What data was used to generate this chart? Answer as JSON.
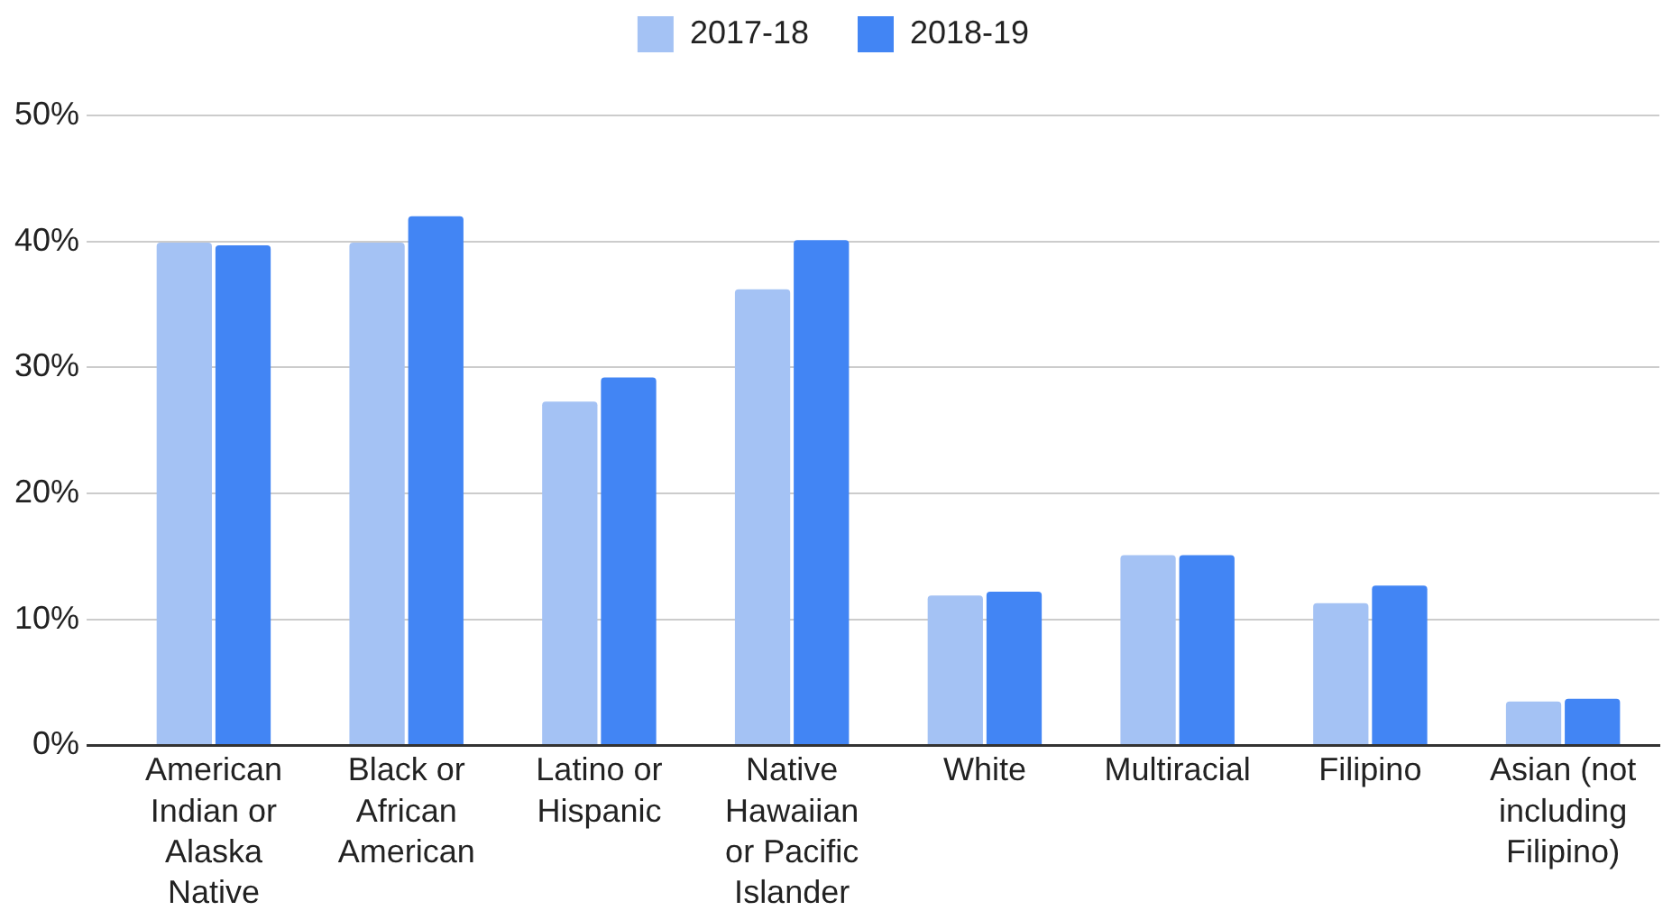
{
  "chart_data": {
    "type": "bar",
    "categories": [
      "American Indian or Alaska Native",
      "Black or African American",
      "Latino or Hispanic",
      "Native Hawaiian or Pacific Islander",
      "White",
      "Multiracial",
      "Filipino",
      "Asian (not including Filipino)"
    ],
    "series": [
      {
        "name": "2017-18",
        "color": "#a4c2f4",
        "values": [
          39.9,
          39.9,
          27.3,
          36.2,
          11.9,
          15.1,
          11.3,
          3.5
        ]
      },
      {
        "name": "2018-19",
        "color": "#4285f4",
        "values": [
          39.7,
          42.0,
          29.2,
          40.1,
          12.2,
          15.1,
          12.7,
          3.7
        ]
      }
    ],
    "ylim": [
      0,
      50
    ],
    "yticks": [
      {
        "value": 0,
        "label": "0%"
      },
      {
        "value": 10,
        "label": "10%"
      },
      {
        "value": 20,
        "label": "20%"
      },
      {
        "value": 30,
        "label": "30%"
      },
      {
        "value": 40,
        "label": "40%"
      },
      {
        "value": 50,
        "label": "50%"
      }
    ],
    "grid": "y",
    "legend": "top"
  }
}
